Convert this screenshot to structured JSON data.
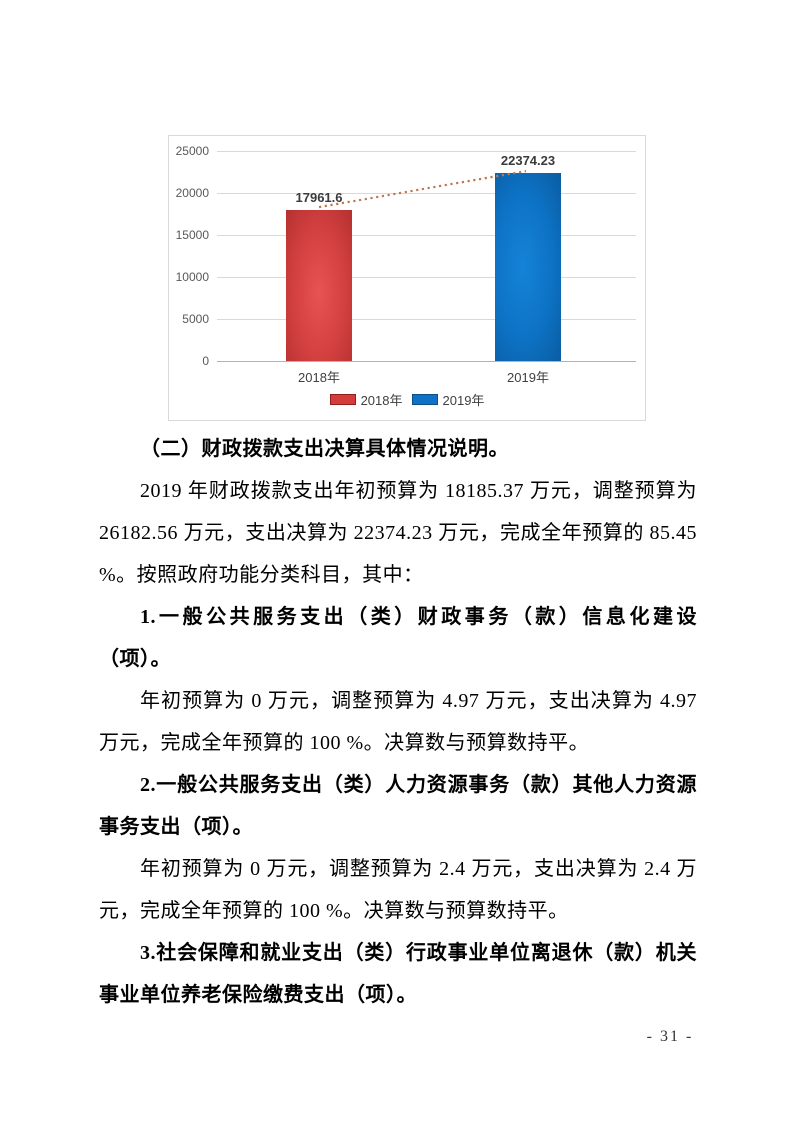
{
  "page": {
    "number": "- 31 -",
    "background": "#ffffff"
  },
  "chart_data": {
    "type": "bar",
    "title": "",
    "xlabel": "",
    "ylabel": "",
    "categories": [
      "2018年",
      "2019年"
    ],
    "values": [
      17961.6,
      22374.23
    ],
    "data_labels": [
      "17961.6",
      "22374.23"
    ],
    "yticks": [
      0,
      5000,
      10000,
      15000,
      20000,
      25000
    ],
    "ylim": [
      0,
      25000
    ],
    "grid": true,
    "legend_position": "bottom",
    "legend": [
      {
        "label": "2018年",
        "color": "#d43b3b",
        "border": "#8f1f1f"
      },
      {
        "label": "2019年",
        "color": "#0f72c4",
        "border": "#0a4f86"
      }
    ],
    "bar_colors": [
      "#cf3a3a",
      "#0c72c2"
    ],
    "trendline": {
      "style": "dotted",
      "color": "#c0764f"
    }
  },
  "document": {
    "blocks": [
      {
        "style": "heading",
        "text": "（二）财政拨款支出决算具体情况说明。"
      },
      {
        "style": "body",
        "text": "2019 年财政拨款支出年初预算为 18185.37 万元，调整预算为 26182.56 万元，支出决算为 22374.23 万元，完成全年预算的 85.45 %。按照政府功能分类科目，其中："
      },
      {
        "style": "heading",
        "text": "1.一般公共服务支出（类）财政事务（款）信息化建设（项）。"
      },
      {
        "style": "body",
        "text": "年初预算为 0 万元，调整预算为 4.97 万元，支出决算为 4.97 万元，完成全年预算的 100 %。决算数与预算数持平。"
      },
      {
        "style": "heading",
        "text": "2.一般公共服务支出（类）人力资源事务（款）其他人力资源事务支出（项）。"
      },
      {
        "style": "body",
        "text": "年初预算为 0 万元，调整预算为 2.4 万元，支出决算为 2.4 万元，完成全年预算的 100 %。决算数与预算数持平。"
      },
      {
        "style": "heading",
        "text": "3.社会保障和就业支出（类）行政事业单位离退休（款）机关事业单位养老保险缴费支出（项）。"
      }
    ]
  }
}
